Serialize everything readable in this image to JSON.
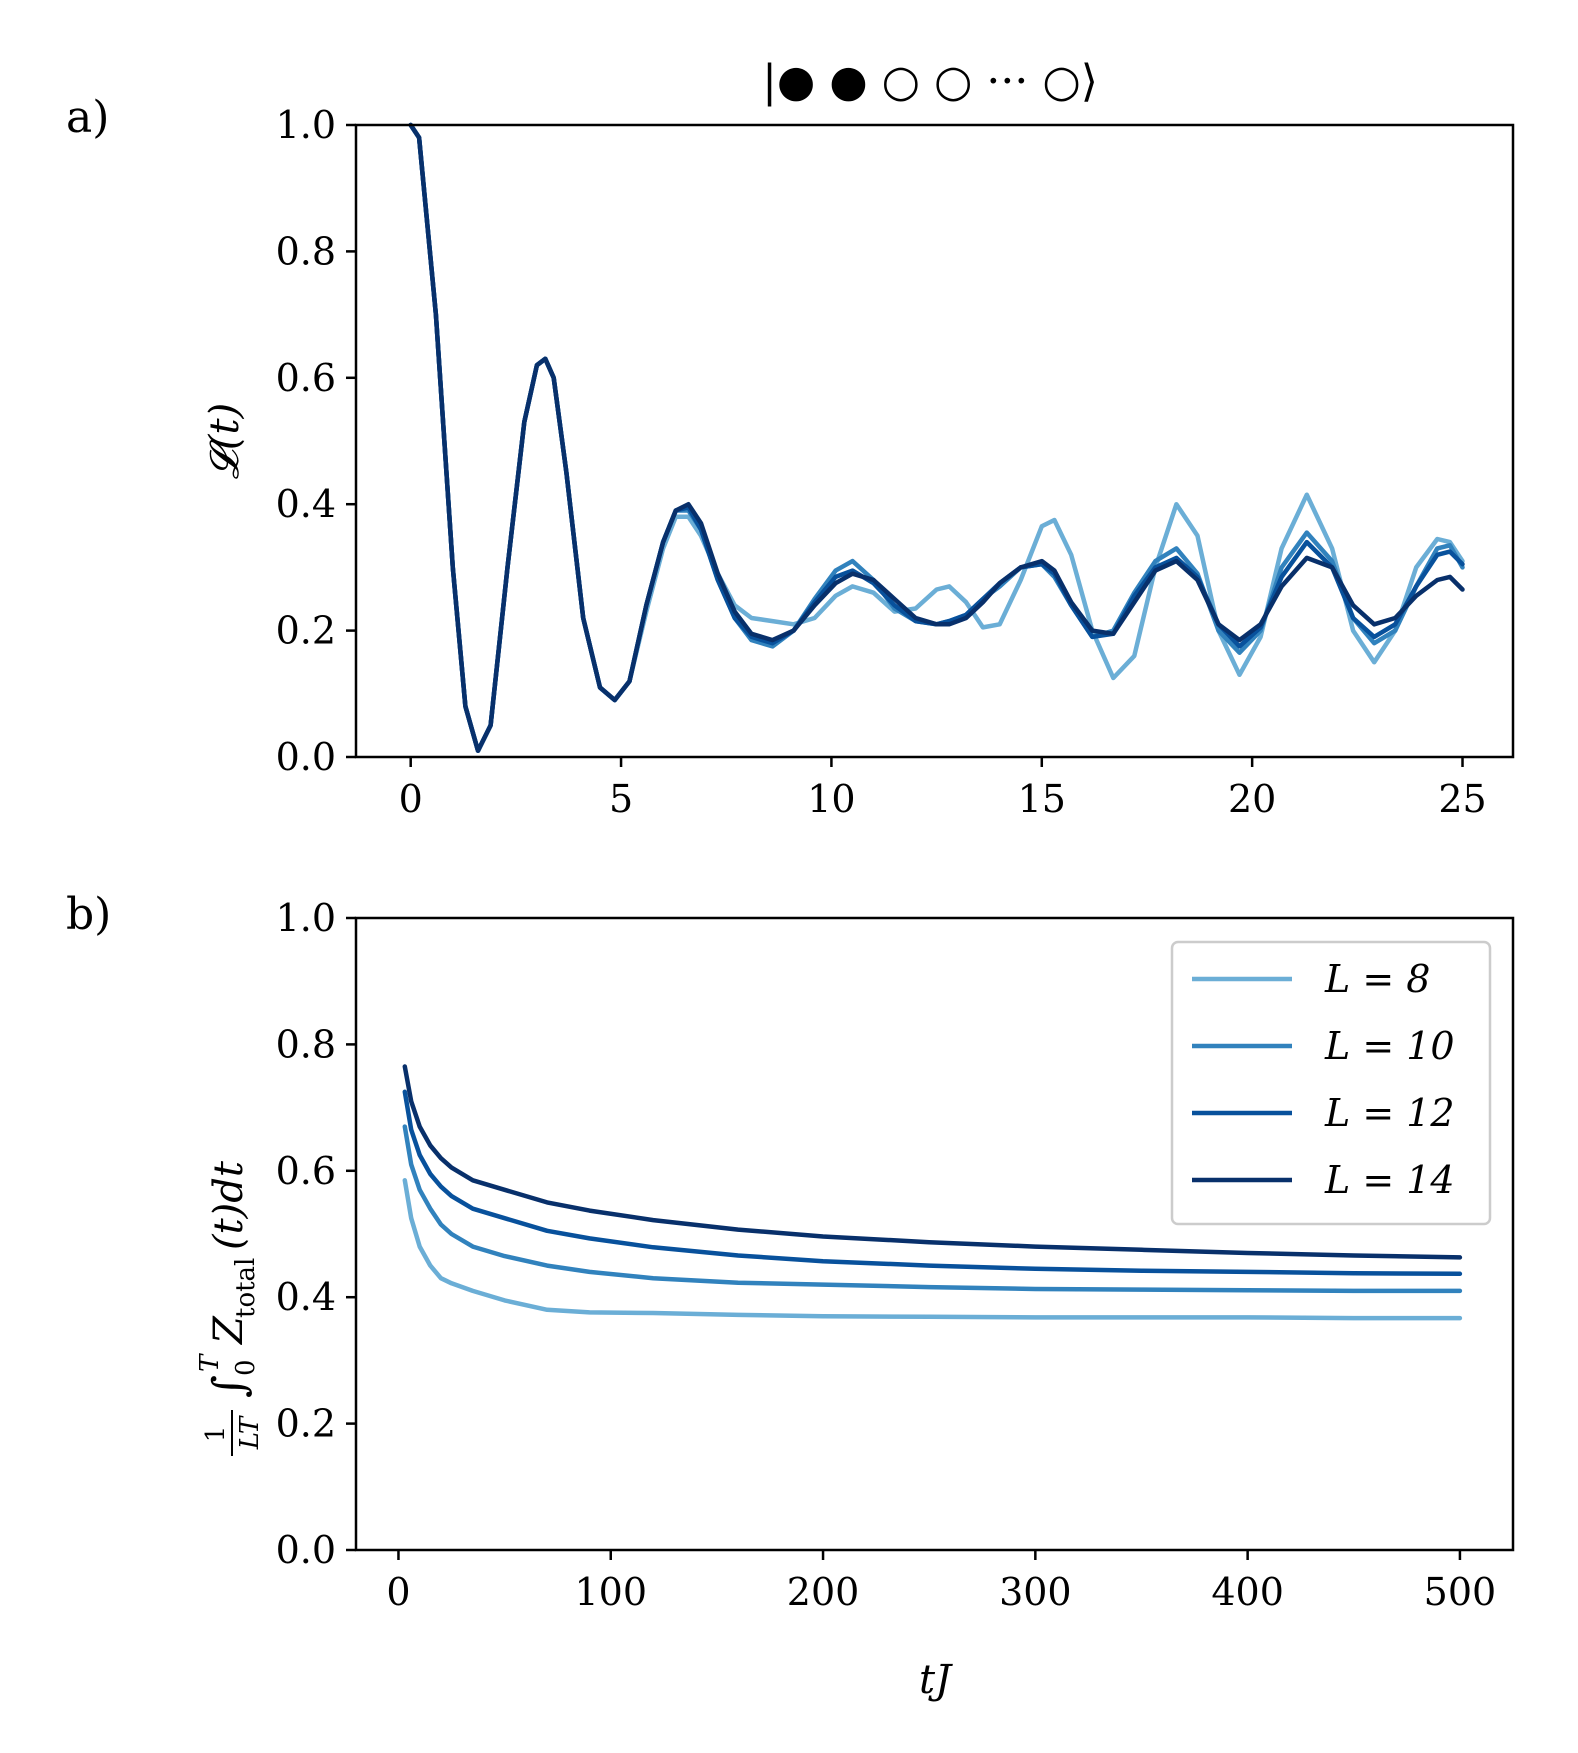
{
  "chart_data": [
    {
      "type": "line",
      "panel_label": "a)",
      "title": "|● ●  ○ ○ ··· ○⟩",
      "xlabel": "",
      "ylabel": "𝓛(t)",
      "xlim": [
        -1.3,
        26.2
      ],
      "ylim": [
        0.0,
        1.0
      ],
      "xticks": [
        0,
        5,
        10,
        15,
        20,
        25
      ],
      "xtick_labels": [
        "0",
        "5",
        "10",
        "15",
        "20",
        "25"
      ],
      "yticks": [
        0.0,
        0.2,
        0.4,
        0.6,
        0.8,
        1.0
      ],
      "ytick_labels": [
        "0.0",
        "0.2",
        "0.4",
        "0.6",
        "0.8",
        "1.0"
      ],
      "grid": false,
      "series": [
        {
          "name": "L = 8",
          "color": "#6baed6",
          "x": [
            0,
            0.2,
            0.6,
            1.0,
            1.3,
            1.6,
            1.9,
            2.3,
            2.7,
            3.0,
            3.2,
            3.4,
            3.7,
            4.1,
            4.5,
            4.85,
            5.2,
            5.6,
            6.0,
            6.3,
            6.6,
            6.9,
            7.3,
            7.7,
            8.1,
            8.6,
            9.1,
            9.6,
            10.1,
            10.5,
            11.0,
            11.5,
            12.0,
            12.5,
            12.8,
            13.2,
            13.6,
            14.0,
            14.5,
            15.0,
            15.3,
            15.7,
            16.2,
            16.7,
            17.2,
            17.7,
            18.2,
            18.7,
            19.2,
            19.7,
            20.2,
            20.7,
            21.3,
            21.9,
            22.4,
            22.9,
            23.4,
            23.9,
            24.4,
            24.7,
            25.0
          ],
          "values": [
            1.0,
            0.98,
            0.7,
            0.3,
            0.08,
            0.01,
            0.05,
            0.3,
            0.53,
            0.62,
            0.63,
            0.6,
            0.45,
            0.22,
            0.11,
            0.09,
            0.12,
            0.23,
            0.33,
            0.38,
            0.38,
            0.35,
            0.29,
            0.24,
            0.22,
            0.215,
            0.21,
            0.22,
            0.255,
            0.27,
            0.26,
            0.23,
            0.235,
            0.265,
            0.27,
            0.245,
            0.205,
            0.21,
            0.28,
            0.365,
            0.375,
            0.32,
            0.2,
            0.125,
            0.16,
            0.3,
            0.4,
            0.35,
            0.2,
            0.13,
            0.19,
            0.33,
            0.415,
            0.33,
            0.2,
            0.15,
            0.2,
            0.3,
            0.345,
            0.34,
            0.31
          ]
        },
        {
          "name": "L = 10",
          "color": "#3182bd",
          "x": [
            0,
            0.2,
            0.6,
            1.0,
            1.3,
            1.6,
            1.9,
            2.3,
            2.7,
            3.0,
            3.2,
            3.4,
            3.7,
            4.1,
            4.5,
            4.85,
            5.2,
            5.6,
            6.0,
            6.3,
            6.6,
            6.9,
            7.3,
            7.7,
            8.1,
            8.6,
            9.1,
            9.6,
            10.1,
            10.5,
            11.0,
            11.5,
            12.0,
            12.5,
            12.8,
            13.2,
            13.6,
            14.0,
            14.5,
            15.0,
            15.3,
            15.7,
            16.2,
            16.7,
            17.2,
            17.7,
            18.2,
            18.7,
            19.2,
            19.7,
            20.2,
            20.7,
            21.3,
            21.9,
            22.4,
            22.9,
            23.4,
            23.9,
            24.4,
            24.7,
            25.0
          ],
          "values": [
            1.0,
            0.98,
            0.7,
            0.3,
            0.08,
            0.01,
            0.05,
            0.3,
            0.53,
            0.62,
            0.63,
            0.6,
            0.45,
            0.22,
            0.11,
            0.09,
            0.12,
            0.24,
            0.34,
            0.39,
            0.39,
            0.36,
            0.28,
            0.22,
            0.185,
            0.175,
            0.2,
            0.25,
            0.295,
            0.31,
            0.28,
            0.235,
            0.215,
            0.21,
            0.215,
            0.225,
            0.25,
            0.27,
            0.3,
            0.305,
            0.285,
            0.24,
            0.19,
            0.2,
            0.26,
            0.31,
            0.33,
            0.29,
            0.2,
            0.165,
            0.2,
            0.3,
            0.355,
            0.31,
            0.22,
            0.18,
            0.2,
            0.27,
            0.33,
            0.335,
            0.3
          ]
        },
        {
          "name": "L = 12",
          "color": "#08519c",
          "x": [
            0,
            0.2,
            0.6,
            1.0,
            1.3,
            1.6,
            1.9,
            2.3,
            2.7,
            3.0,
            3.2,
            3.4,
            3.7,
            4.1,
            4.5,
            4.85,
            5.2,
            5.6,
            6.0,
            6.3,
            6.6,
            6.9,
            7.3,
            7.7,
            8.1,
            8.6,
            9.1,
            9.6,
            10.1,
            10.5,
            11.0,
            11.5,
            12.0,
            12.5,
            12.8,
            13.2,
            13.6,
            14.0,
            14.5,
            15.0,
            15.3,
            15.7,
            16.2,
            16.7,
            17.2,
            17.7,
            18.2,
            18.7,
            19.2,
            19.7,
            20.2,
            20.7,
            21.3,
            21.9,
            22.4,
            22.9,
            23.4,
            23.9,
            24.4,
            24.7,
            25.0
          ],
          "values": [
            1.0,
            0.98,
            0.7,
            0.3,
            0.08,
            0.01,
            0.05,
            0.3,
            0.53,
            0.62,
            0.63,
            0.6,
            0.45,
            0.22,
            0.11,
            0.09,
            0.12,
            0.24,
            0.34,
            0.39,
            0.395,
            0.36,
            0.28,
            0.22,
            0.19,
            0.18,
            0.2,
            0.245,
            0.285,
            0.295,
            0.275,
            0.24,
            0.215,
            0.21,
            0.215,
            0.225,
            0.25,
            0.275,
            0.3,
            0.305,
            0.29,
            0.24,
            0.19,
            0.195,
            0.255,
            0.3,
            0.315,
            0.285,
            0.21,
            0.175,
            0.205,
            0.285,
            0.34,
            0.3,
            0.22,
            0.19,
            0.21,
            0.27,
            0.32,
            0.325,
            0.305
          ]
        },
        {
          "name": "L = 14",
          "color": "#08306b",
          "x": [
            0,
            0.2,
            0.6,
            1.0,
            1.3,
            1.6,
            1.9,
            2.3,
            2.7,
            3.0,
            3.2,
            3.4,
            3.7,
            4.1,
            4.5,
            4.85,
            5.2,
            5.6,
            6.0,
            6.3,
            6.6,
            6.9,
            7.3,
            7.7,
            8.1,
            8.6,
            9.1,
            9.6,
            10.1,
            10.5,
            11.0,
            11.5,
            12.0,
            12.5,
            12.8,
            13.2,
            13.6,
            14.0,
            14.5,
            15.0,
            15.3,
            15.7,
            16.2,
            16.7,
            17.2,
            17.7,
            18.2,
            18.7,
            19.2,
            19.7,
            20.2,
            20.7,
            21.3,
            21.9,
            22.4,
            22.9,
            23.4,
            23.9,
            24.4,
            24.7,
            25.0
          ],
          "values": [
            1.0,
            0.98,
            0.7,
            0.3,
            0.08,
            0.01,
            0.05,
            0.3,
            0.53,
            0.62,
            0.63,
            0.6,
            0.45,
            0.22,
            0.11,
            0.09,
            0.12,
            0.24,
            0.34,
            0.39,
            0.4,
            0.37,
            0.29,
            0.23,
            0.195,
            0.185,
            0.2,
            0.24,
            0.275,
            0.29,
            0.28,
            0.25,
            0.22,
            0.21,
            0.21,
            0.22,
            0.245,
            0.275,
            0.3,
            0.31,
            0.295,
            0.245,
            0.2,
            0.195,
            0.245,
            0.295,
            0.31,
            0.28,
            0.21,
            0.185,
            0.21,
            0.27,
            0.315,
            0.3,
            0.24,
            0.21,
            0.22,
            0.255,
            0.28,
            0.285,
            0.265
          ]
        }
      ]
    },
    {
      "type": "line",
      "panel_label": "b)",
      "title": "",
      "xlabel": "tJ",
      "ylabel": "(1/LT) ∫₀ᵀ Z_total(t) dt",
      "ylabel_parts": {
        "frac_num": "1",
        "frac_den": "LT",
        "integral": "∫",
        "lower": "0",
        "upper": "T",
        "symbol": "Z",
        "subscript": "total",
        "rest": "(t)dt"
      },
      "xlim": [
        -20,
        525
      ],
      "ylim": [
        0.0,
        1.0
      ],
      "xticks": [
        0,
        100,
        200,
        300,
        400,
        500
      ],
      "xtick_labels": [
        "0",
        "100",
        "200",
        "300",
        "400",
        "500"
      ],
      "yticks": [
        0.0,
        0.2,
        0.4,
        0.6,
        0.8,
        1.0
      ],
      "ytick_labels": [
        "0.0",
        "0.2",
        "0.4",
        "0.6",
        "0.8",
        "1.0"
      ],
      "grid": false,
      "legend_position": "top-right",
      "legend_labels": [
        "L = 8",
        "L = 10",
        "L = 12",
        "L = 14"
      ],
      "series": [
        {
          "name": "L = 8",
          "color": "#6baed6",
          "x": [
            3,
            6,
            10,
            15,
            20,
            25,
            35,
            50,
            70,
            90,
            120,
            160,
            200,
            250,
            300,
            350,
            400,
            450,
            500
          ],
          "values": [
            0.585,
            0.525,
            0.48,
            0.45,
            0.43,
            0.422,
            0.41,
            0.395,
            0.38,
            0.376,
            0.375,
            0.372,
            0.37,
            0.369,
            0.368,
            0.368,
            0.368,
            0.367,
            0.367
          ]
        },
        {
          "name": "L = 10",
          "color": "#3182bd",
          "x": [
            3,
            6,
            10,
            15,
            20,
            25,
            35,
            50,
            70,
            90,
            120,
            160,
            200,
            250,
            300,
            350,
            400,
            450,
            500
          ],
          "values": [
            0.67,
            0.61,
            0.57,
            0.54,
            0.515,
            0.5,
            0.48,
            0.465,
            0.45,
            0.44,
            0.43,
            0.423,
            0.42,
            0.416,
            0.413,
            0.412,
            0.411,
            0.41,
            0.41
          ]
        },
        {
          "name": "L = 12",
          "color": "#08519c",
          "x": [
            3,
            6,
            10,
            15,
            20,
            25,
            35,
            50,
            70,
            90,
            120,
            160,
            200,
            250,
            300,
            350,
            400,
            450,
            500
          ],
          "values": [
            0.725,
            0.665,
            0.625,
            0.595,
            0.575,
            0.56,
            0.54,
            0.525,
            0.505,
            0.493,
            0.479,
            0.466,
            0.457,
            0.45,
            0.445,
            0.442,
            0.44,
            0.438,
            0.437
          ]
        },
        {
          "name": "L = 14",
          "color": "#08306b",
          "x": [
            3,
            6,
            10,
            15,
            20,
            25,
            35,
            50,
            70,
            90,
            120,
            160,
            200,
            250,
            300,
            350,
            400,
            450,
            500
          ],
          "values": [
            0.765,
            0.71,
            0.67,
            0.64,
            0.62,
            0.605,
            0.585,
            0.57,
            0.55,
            0.537,
            0.522,
            0.507,
            0.496,
            0.487,
            0.48,
            0.475,
            0.47,
            0.466,
            0.463
          ]
        }
      ]
    }
  ]
}
